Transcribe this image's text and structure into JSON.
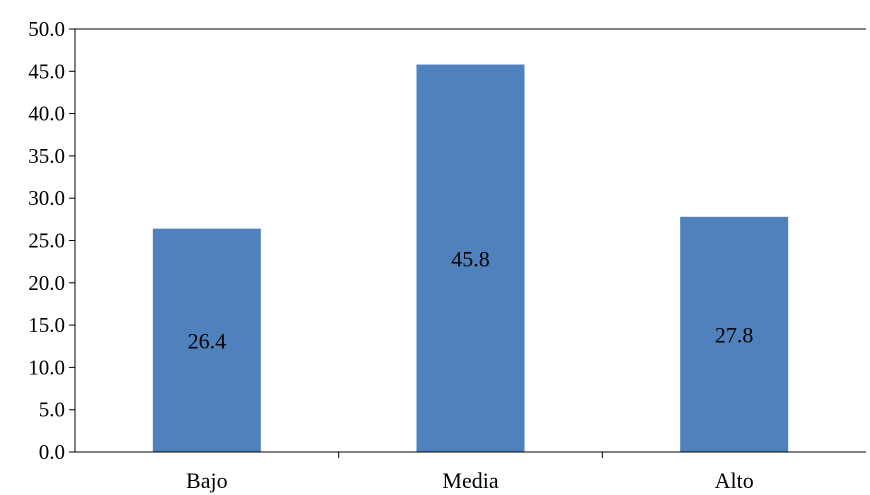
{
  "chart_data": {
    "type": "bar",
    "categories": [
      "Bajo",
      "Media",
      "Alto"
    ],
    "values": [
      26.4,
      45.8,
      27.8
    ],
    "data_labels": [
      "26.4",
      "45.8",
      "27.8"
    ],
    "y_ticks": [
      "0.0",
      "5.0",
      "10.0",
      "15.0",
      "20.0",
      "25.0",
      "30.0",
      "35.0",
      "40.0",
      "45.0",
      "50.0"
    ],
    "ylim": [
      0,
      50
    ],
    "grid": false,
    "legend": "none",
    "title": "",
    "xlabel": "",
    "ylabel": "",
    "bar_color": "#4F81BD"
  }
}
